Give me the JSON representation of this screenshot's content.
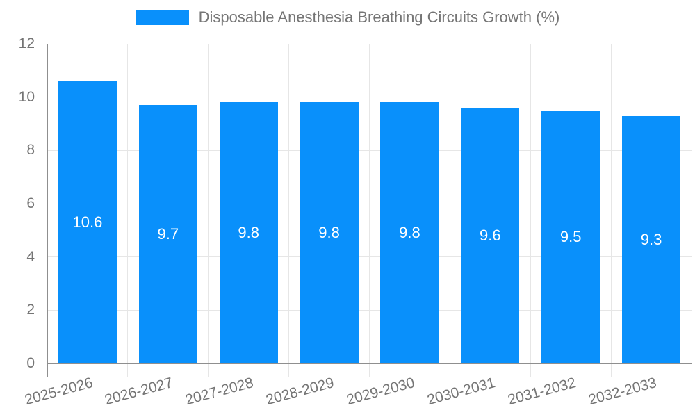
{
  "chart_data": {
    "type": "bar",
    "title": "",
    "legend_label": "Disposable Anesthesia Breathing Circuits Growth (%)",
    "legend_position": "top",
    "categories": [
      "2025-2026",
      "2026-2027",
      "2027-2028",
      "2028-2029",
      "2029-2030",
      "2030-2031",
      "2031-2032",
      "2032-2033"
    ],
    "values": [
      10.6,
      9.7,
      9.8,
      9.8,
      9.8,
      9.6,
      9.5,
      9.3
    ],
    "value_labels": [
      "10.6",
      "9.7",
      "9.8",
      "9.8",
      "9.8",
      "9.6",
      "9.5",
      "9.3"
    ],
    "xlabel": "",
    "ylabel": "",
    "ylim": [
      0,
      12
    ],
    "y_ticks": [
      0,
      2,
      4,
      6,
      8,
      10,
      12
    ],
    "grid": "on",
    "x_label_rotation_deg": -15,
    "colors": {
      "bar": "#0990fb",
      "axis_text": "#757575",
      "grid_line": "#e6e6e6",
      "axis_line": "#8f8f8f",
      "value_text": "#ffffff",
      "background": "#ffffff"
    }
  }
}
